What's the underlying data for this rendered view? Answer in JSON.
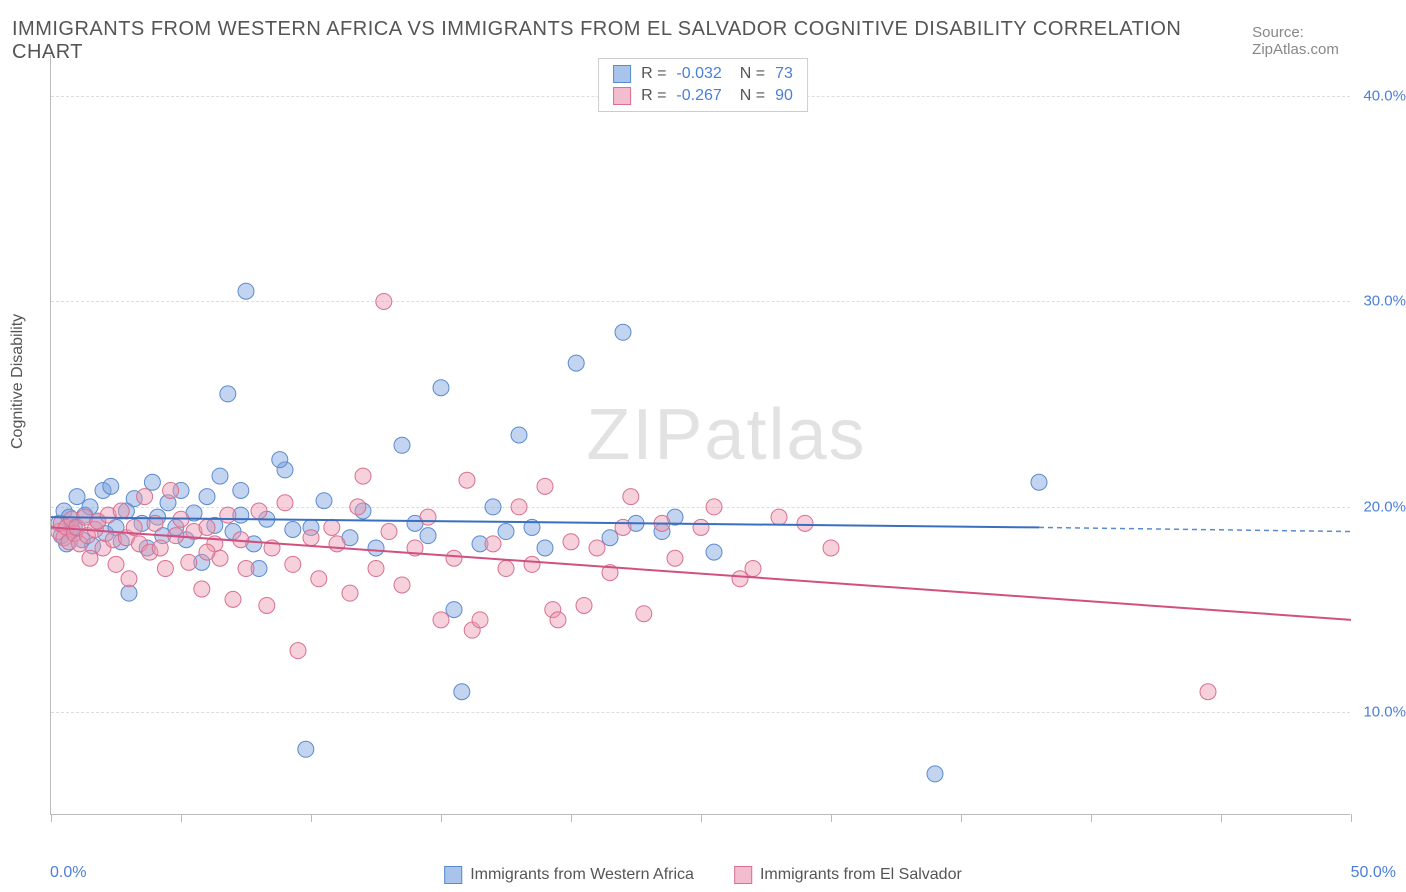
{
  "title": "IMMIGRANTS FROM WESTERN AFRICA VS IMMIGRANTS FROM EL SALVADOR COGNITIVE DISABILITY CORRELATION CHART",
  "source": "Source: ZipAtlas.com",
  "watermark": "ZIPatlas",
  "y_axis_label": "Cognitive Disability",
  "x_min_label": "0.0%",
  "x_max_label": "50.0%",
  "chart": {
    "type": "scatter",
    "xlim": [
      0,
      50
    ],
    "ylim": [
      5,
      42
    ],
    "y_ticks": [
      10,
      20,
      30,
      40
    ],
    "y_tick_labels": [
      "10.0%",
      "20.0%",
      "30.0%",
      "40.0%"
    ],
    "x_ticks": [
      0,
      5,
      10,
      15,
      20,
      25,
      30,
      35,
      40,
      45,
      50
    ],
    "grid_color": "#dddddd",
    "background_color": "#ffffff",
    "series": [
      {
        "name": "Immigrants from Western Africa",
        "R": "-0.032",
        "N": "73",
        "fill": "rgba(120,160,220,0.45)",
        "stroke": "#5a8bd0",
        "swatch_fill": "#a8c4ea",
        "swatch_stroke": "#5a8bd0",
        "marker_radius": 8,
        "trend": {
          "x1": 0,
          "y1": 19.5,
          "x2": 38,
          "y2": 19.0,
          "color": "#3a6fc0",
          "width": 2
        },
        "trend_ext": {
          "x1": 38,
          "y1": 19.0,
          "x2": 50,
          "y2": 18.8,
          "color": "#5a8bd0",
          "width": 1.5
        },
        "points": [
          [
            0.3,
            19.2
          ],
          [
            0.4,
            18.6
          ],
          [
            0.5,
            19.8
          ],
          [
            0.6,
            18.2
          ],
          [
            0.7,
            19.5
          ],
          [
            0.8,
            18.9
          ],
          [
            0.9,
            19.0
          ],
          [
            1.0,
            20.5
          ],
          [
            1.2,
            18.4
          ],
          [
            1.3,
            19.6
          ],
          [
            1.5,
            20.0
          ],
          [
            1.6,
            18.1
          ],
          [
            1.8,
            19.3
          ],
          [
            2.0,
            20.8
          ],
          [
            2.1,
            18.7
          ],
          [
            2.3,
            21.0
          ],
          [
            2.5,
            19.0
          ],
          [
            2.7,
            18.3
          ],
          [
            2.9,
            19.8
          ],
          [
            3.0,
            15.8
          ],
          [
            3.2,
            20.4
          ],
          [
            3.5,
            19.2
          ],
          [
            3.7,
            18.0
          ],
          [
            3.9,
            21.2
          ],
          [
            4.1,
            19.5
          ],
          [
            4.3,
            18.6
          ],
          [
            4.5,
            20.2
          ],
          [
            4.8,
            19.0
          ],
          [
            5.0,
            20.8
          ],
          [
            5.2,
            18.4
          ],
          [
            5.5,
            19.7
          ],
          [
            5.8,
            17.3
          ],
          [
            6.0,
            20.5
          ],
          [
            6.3,
            19.1
          ],
          [
            6.5,
            21.5
          ],
          [
            6.8,
            25.5
          ],
          [
            7.0,
            18.8
          ],
          [
            7.3,
            19.6
          ],
          [
            7.5,
            30.5
          ],
          [
            7.8,
            18.2
          ],
          [
            8.0,
            17.0
          ],
          [
            8.3,
            19.4
          ],
          [
            9.0,
            21.8
          ],
          [
            9.3,
            18.9
          ],
          [
            9.8,
            8.2
          ],
          [
            10.0,
            19.0
          ],
          [
            10.5,
            20.3
          ],
          [
            11.5,
            18.5
          ],
          [
            12.0,
            19.8
          ],
          [
            12.5,
            18.0
          ],
          [
            13.5,
            23.0
          ],
          [
            14.0,
            19.2
          ],
          [
            14.5,
            18.6
          ],
          [
            15.0,
            25.8
          ],
          [
            15.5,
            15.0
          ],
          [
            15.8,
            11.0
          ],
          [
            16.5,
            18.2
          ],
          [
            17.0,
            20.0
          ],
          [
            17.5,
            18.8
          ],
          [
            18.0,
            23.5
          ],
          [
            18.5,
            19.0
          ],
          [
            19.0,
            18.0
          ],
          [
            20.2,
            27.0
          ],
          [
            21.5,
            18.5
          ],
          [
            22.0,
            28.5
          ],
          [
            22.5,
            19.2
          ],
          [
            23.5,
            18.8
          ],
          [
            24.0,
            19.5
          ],
          [
            25.5,
            17.8
          ],
          [
            34.0,
            7.0
          ],
          [
            38.0,
            21.2
          ],
          [
            7.3,
            20.8
          ],
          [
            8.8,
            22.3
          ]
        ]
      },
      {
        "name": "Immigrants from El Salvador",
        "R": "-0.267",
        "N": "90",
        "fill": "rgba(235,150,175,0.45)",
        "stroke": "#d97090",
        "swatch_fill": "#f4bdcf",
        "swatch_stroke": "#d97090",
        "marker_radius": 8,
        "trend": {
          "x1": 0,
          "y1": 19.0,
          "x2": 50,
          "y2": 14.5,
          "color": "#d05080",
          "width": 2
        },
        "points": [
          [
            0.3,
            18.8
          ],
          [
            0.4,
            19.2
          ],
          [
            0.5,
            18.5
          ],
          [
            0.6,
            19.0
          ],
          [
            0.7,
            18.3
          ],
          [
            0.8,
            19.4
          ],
          [
            0.9,
            18.7
          ],
          [
            1.0,
            19.0
          ],
          [
            1.1,
            18.2
          ],
          [
            1.3,
            19.5
          ],
          [
            1.4,
            18.6
          ],
          [
            1.5,
            17.5
          ],
          [
            1.7,
            18.9
          ],
          [
            1.8,
            19.3
          ],
          [
            2.0,
            18.0
          ],
          [
            2.2,
            19.6
          ],
          [
            2.4,
            18.4
          ],
          [
            2.5,
            17.2
          ],
          [
            2.7,
            19.8
          ],
          [
            2.9,
            18.5
          ],
          [
            3.0,
            16.5
          ],
          [
            3.2,
            19.0
          ],
          [
            3.4,
            18.2
          ],
          [
            3.6,
            20.5
          ],
          [
            3.8,
            17.8
          ],
          [
            4.0,
            19.2
          ],
          [
            4.2,
            18.0
          ],
          [
            4.4,
            17.0
          ],
          [
            4.6,
            20.8
          ],
          [
            4.8,
            18.6
          ],
          [
            5.0,
            19.4
          ],
          [
            5.3,
            17.3
          ],
          [
            5.5,
            18.8
          ],
          [
            5.8,
            16.0
          ],
          [
            6.0,
            19.0
          ],
          [
            6.3,
            18.2
          ],
          [
            6.5,
            17.5
          ],
          [
            6.8,
            19.6
          ],
          [
            7.0,
            15.5
          ],
          [
            7.3,
            18.4
          ],
          [
            7.5,
            17.0
          ],
          [
            8.0,
            19.8
          ],
          [
            8.3,
            15.2
          ],
          [
            8.5,
            18.0
          ],
          [
            9.0,
            20.2
          ],
          [
            9.3,
            17.2
          ],
          [
            9.5,
            13.0
          ],
          [
            10.0,
            18.5
          ],
          [
            10.3,
            16.5
          ],
          [
            10.8,
            19.0
          ],
          [
            11.0,
            18.2
          ],
          [
            11.5,
            15.8
          ],
          [
            12.0,
            21.5
          ],
          [
            12.5,
            17.0
          ],
          [
            12.8,
            30.0
          ],
          [
            13.0,
            18.8
          ],
          [
            13.5,
            16.2
          ],
          [
            14.0,
            18.0
          ],
          [
            14.5,
            19.5
          ],
          [
            15.0,
            14.5
          ],
          [
            15.5,
            17.5
          ],
          [
            16.0,
            21.3
          ],
          [
            16.2,
            14.0
          ],
          [
            16.5,
            14.5
          ],
          [
            17.0,
            18.2
          ],
          [
            17.5,
            17.0
          ],
          [
            18.0,
            20.0
          ],
          [
            18.5,
            17.2
          ],
          [
            19.0,
            21.0
          ],
          [
            19.3,
            15.0
          ],
          [
            19.5,
            14.5
          ],
          [
            20.0,
            18.3
          ],
          [
            20.5,
            15.2
          ],
          [
            21.0,
            18.0
          ],
          [
            21.5,
            16.8
          ],
          [
            22.0,
            19.0
          ],
          [
            22.3,
            20.5
          ],
          [
            22.8,
            14.8
          ],
          [
            23.5,
            19.2
          ],
          [
            24.0,
            17.5
          ],
          [
            25.0,
            19.0
          ],
          [
            25.5,
            20.0
          ],
          [
            26.5,
            16.5
          ],
          [
            27.0,
            17.0
          ],
          [
            28.0,
            19.5
          ],
          [
            29.0,
            19.2
          ],
          [
            30.0,
            18.0
          ],
          [
            44.5,
            11.0
          ],
          [
            6.0,
            17.8
          ],
          [
            11.8,
            20.0
          ]
        ]
      }
    ]
  }
}
